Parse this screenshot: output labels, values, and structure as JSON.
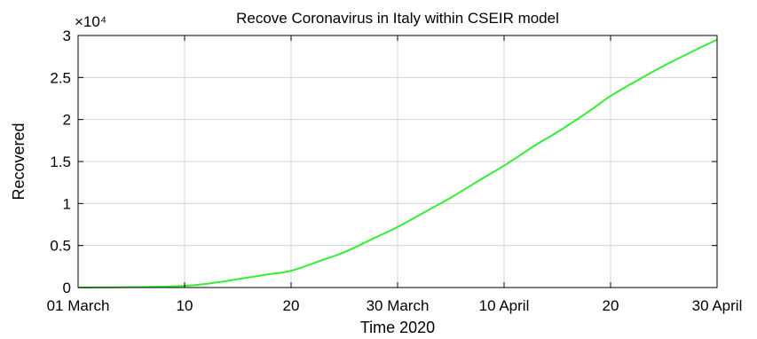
{
  "chart_data": {
    "type": "line",
    "title": "Recove Coronavirus in Italy within CSEIR model",
    "xlabel": "Time 2020",
    "ylabel": "Recovered",
    "y_multiplier_label": "×10⁴",
    "x_ticks": [
      {
        "day": 0,
        "label": "01 March"
      },
      {
        "day": 10,
        "label": "10"
      },
      {
        "day": 20,
        "label": "20"
      },
      {
        "day": 30,
        "label": "30 March"
      },
      {
        "day": 40,
        "label": "10 April"
      },
      {
        "day": 50,
        "label": "20"
      },
      {
        "day": 60,
        "label": "30 April"
      }
    ],
    "y_ticks": [
      {
        "value": 0,
        "label": "0"
      },
      {
        "value": 0.5,
        "label": "0.5"
      },
      {
        "value": 1,
        "label": "1"
      },
      {
        "value": 1.5,
        "label": "1.5"
      },
      {
        "value": 2,
        "label": "2"
      },
      {
        "value": 2.5,
        "label": "2.5"
      },
      {
        "value": 3,
        "label": "3"
      }
    ],
    "xlim": [
      0,
      60
    ],
    "ylim": [
      0,
      3
    ],
    "grid": true,
    "series": [
      {
        "color": "#33ee33",
        "x": [
          0,
          5,
          10,
          13,
          15,
          18,
          20,
          23,
          25,
          28,
          30,
          33,
          35,
          38,
          40,
          43,
          45,
          48,
          50,
          53,
          55,
          58,
          60
        ],
        "y": [
          0,
          0.005,
          0.02,
          0.06,
          0.1,
          0.16,
          0.2,
          0.33,
          0.42,
          0.6,
          0.72,
          0.93,
          1.07,
          1.3,
          1.45,
          1.7,
          1.85,
          2.1,
          2.28,
          2.5,
          2.64,
          2.83,
          2.95
        ]
      }
    ]
  }
}
